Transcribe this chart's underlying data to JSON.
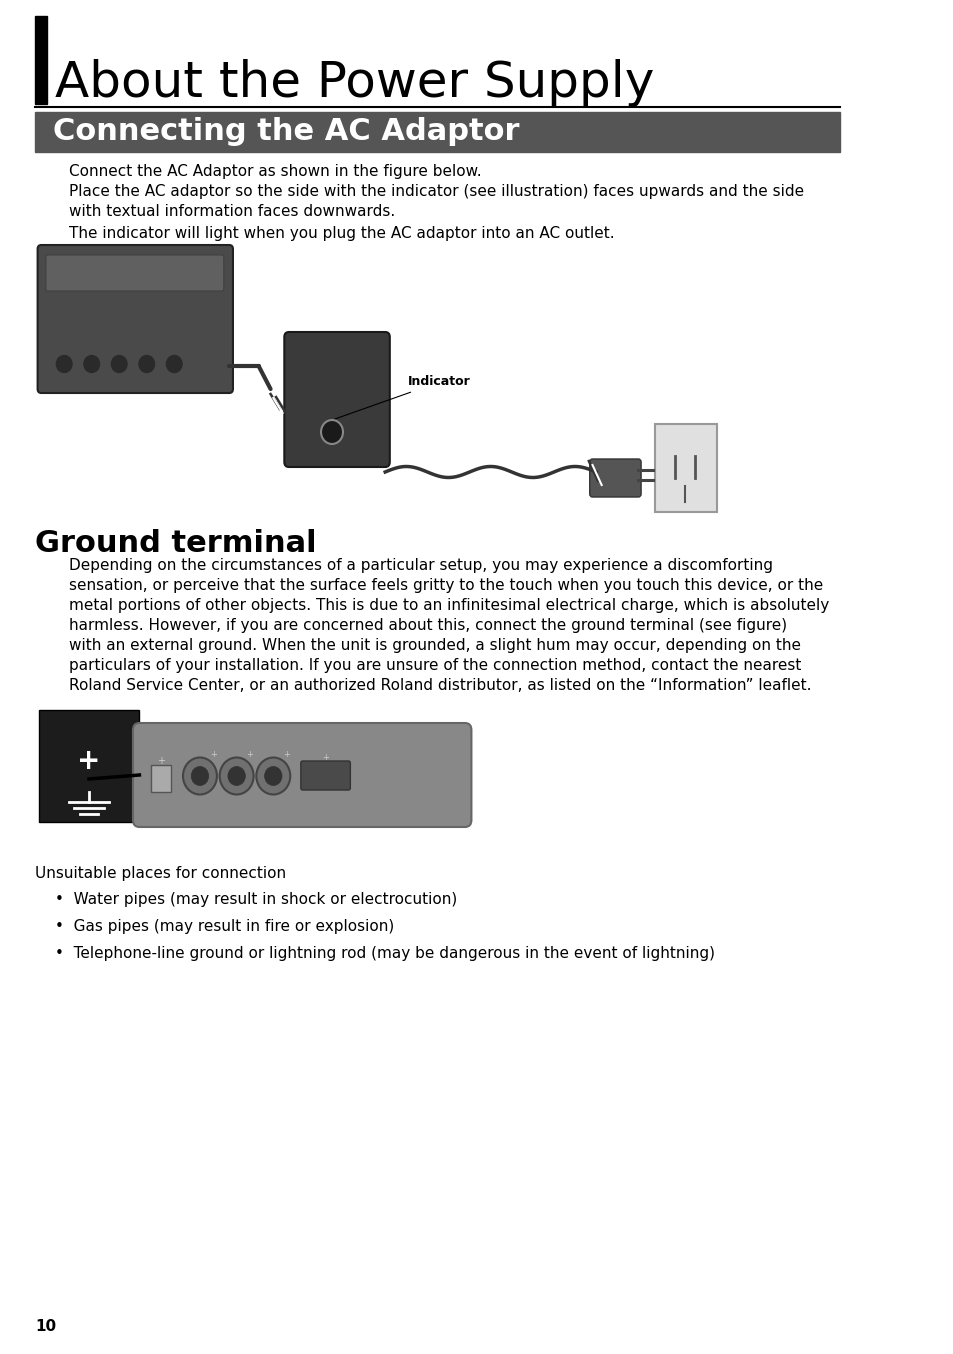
{
  "page_bg": "#ffffff",
  "title": "About the Power Supply",
  "title_fontsize": 36,
  "section1_header": "Connecting the AC Adaptor",
  "section1_header_bg": "#555555",
  "section1_header_color": "#ffffff",
  "section1_header_fontsize": 22,
  "section1_text_1": "Connect the AC Adaptor as shown in the figure below.",
  "section1_text_2": "Place the AC adaptor so the side with the indicator (see illustration) faces upwards and the side\nwith textual information faces downwards.",
  "section1_text_3": "The indicator will light when you plug the AC adaptor into an AC outlet.",
  "indicator_label": "Indicator",
  "section2_header": "Ground terminal",
  "section2_header_fontsize": 22,
  "section2_text": "Depending on the circumstances of a particular setup, you may experience a discomforting\nsensation, or perceive that the surface feels gritty to the touch when you touch this device, or the\nmetal portions of other objects. This is due to an infinitesimal electrical charge, which is absolutely\nharmless. However, if you are concerned about this, connect the ground terminal (see figure)\nwith an external ground. When the unit is grounded, a slight hum may occur, depending on the\nparticulars of your installation. If you are unsure of the connection method, contact the nearest\nRoland Service Center, or an authorized Roland distributor, as listed on the “Information” leaflet.",
  "unsuitable_header": "Unsuitable places for connection",
  "bullet_items": [
    "Water pipes (may result in shock or electrocution)",
    "Gas pipes (may result in fire or explosion)",
    "Telephone-line ground or lightning rod (may be dangerous in the event of lightning)"
  ],
  "page_number": "10",
  "body_fontsize": 11,
  "body_color": "#000000"
}
